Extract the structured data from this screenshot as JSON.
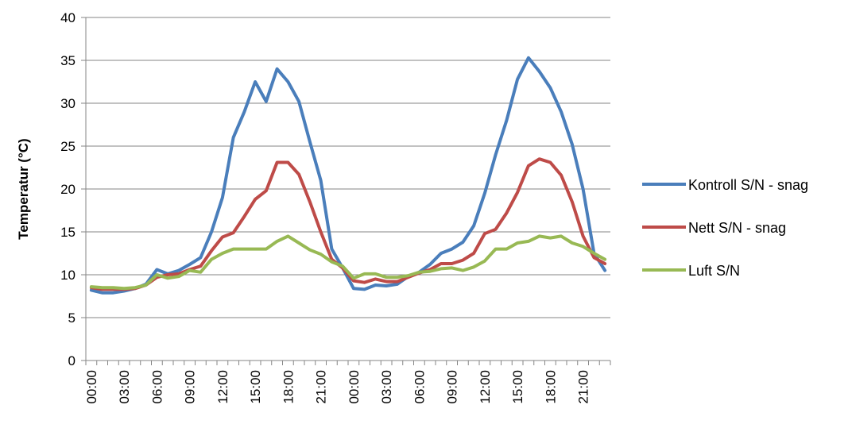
{
  "chart_data": {
    "type": "line",
    "ylabel": "Temperatur (°C)",
    "xlabel": "",
    "ylim": [
      0,
      40
    ],
    "yticks": [
      "0",
      "5",
      "10",
      "15",
      "20",
      "25",
      "30",
      "35",
      "40"
    ],
    "gridlines": true,
    "legend_position": "right",
    "categories": [
      "00:00",
      "01:00",
      "02:00",
      "03:00",
      "04:00",
      "05:00",
      "06:00",
      "07:00",
      "08:00",
      "09:00",
      "10:00",
      "11:00",
      "12:00",
      "13:00",
      "14:00",
      "15:00",
      "16:00",
      "17:00",
      "18:00",
      "19:00",
      "20:00",
      "21:00",
      "22:00",
      "23:00",
      "00:00",
      "01:00",
      "02:00",
      "03:00",
      "04:00",
      "05:00",
      "06:00",
      "07:00",
      "08:00",
      "09:00",
      "10:00",
      "11:00",
      "12:00",
      "13:00",
      "14:00",
      "15:00",
      "16:00",
      "17:00",
      "18:00",
      "19:00",
      "20:00",
      "21:00",
      "22:00",
      "23:00"
    ],
    "x_tick_labels": [
      "00:00",
      "03:00",
      "06:00",
      "09:00",
      "12:00",
      "15:00",
      "18:00",
      "21:00",
      "00:00",
      "03:00",
      "06:00",
      "09:00",
      "12:00",
      "15:00",
      "18:00",
      "21:00"
    ],
    "x_tick_label_every": 3,
    "series": [
      {
        "name": "Kontroll S/N - snag",
        "color": "#4A7EBB",
        "values": [
          8.2,
          7.9,
          7.9,
          8.1,
          8.4,
          8.9,
          10.6,
          10.1,
          10.5,
          11.2,
          12.0,
          15.0,
          19.0,
          26.0,
          29.0,
          32.5,
          30.2,
          34.0,
          32.5,
          30.2,
          25.5,
          21.0,
          13.0,
          10.8,
          8.4,
          8.3,
          8.8,
          8.7,
          8.9,
          9.8,
          10.3,
          11.2,
          12.5,
          13.0,
          13.8,
          15.7,
          19.5,
          24.0,
          28.0,
          32.8,
          35.3,
          33.7,
          31.8,
          29.0,
          25.2,
          20.0,
          12.5,
          10.5
        ]
      },
      {
        "name": "Nett S/N - snag",
        "color": "#BE4B48",
        "values": [
          8.5,
          8.3,
          8.3,
          8.3,
          8.4,
          8.8,
          9.7,
          10.0,
          10.1,
          10.6,
          11.0,
          12.8,
          14.4,
          14.9,
          16.8,
          18.8,
          19.8,
          23.1,
          23.1,
          21.7,
          18.5,
          15.0,
          11.8,
          10.8,
          9.3,
          9.1,
          9.5,
          9.2,
          9.2,
          9.7,
          10.2,
          10.6,
          11.3,
          11.3,
          11.7,
          12.5,
          14.8,
          15.3,
          17.2,
          19.6,
          22.7,
          23.5,
          23.1,
          21.6,
          18.5,
          14.5,
          12.0,
          11.3
        ]
      },
      {
        "name": "Luft S/N",
        "color": "#98B954",
        "values": [
          8.6,
          8.5,
          8.5,
          8.4,
          8.5,
          8.8,
          10.0,
          9.6,
          9.8,
          10.5,
          10.3,
          11.8,
          12.5,
          13.0,
          13.0,
          13.0,
          13.0,
          13.9,
          14.5,
          13.7,
          12.9,
          12.4,
          11.5,
          11.0,
          9.6,
          10.1,
          10.1,
          9.7,
          9.7,
          9.9,
          10.3,
          10.4,
          10.7,
          10.8,
          10.5,
          10.9,
          11.6,
          13.0,
          13.0,
          13.7,
          13.9,
          14.5,
          14.3,
          14.5,
          13.7,
          13.3,
          12.5,
          11.8
        ]
      }
    ]
  }
}
